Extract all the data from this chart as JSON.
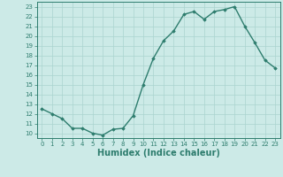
{
  "x": [
    0,
    1,
    2,
    3,
    4,
    5,
    6,
    7,
    8,
    9,
    10,
    11,
    12,
    13,
    14,
    15,
    16,
    17,
    18,
    19,
    20,
    21,
    22,
    23
  ],
  "y": [
    12.5,
    12.0,
    11.5,
    10.5,
    10.5,
    10.0,
    9.8,
    10.4,
    10.5,
    11.8,
    15.0,
    17.7,
    19.5,
    20.5,
    22.2,
    22.5,
    21.7,
    22.5,
    22.7,
    23.0,
    21.0,
    19.3,
    17.5,
    16.7
  ],
  "line_color": "#2e7d6e",
  "marker": "D",
  "marker_size": 1.8,
  "bg_color": "#cceae7",
  "grid_color": "#aad4d0",
  "xlabel": "Humidex (Indice chaleur)",
  "xlabel_color": "#2e7d6e",
  "xlim": [
    -0.5,
    23.5
  ],
  "ylim": [
    9.5,
    23.5
  ],
  "yticks": [
    10,
    11,
    12,
    13,
    14,
    15,
    16,
    17,
    18,
    19,
    20,
    21,
    22,
    23
  ],
  "xticks": [
    0,
    1,
    2,
    3,
    4,
    5,
    6,
    7,
    8,
    9,
    10,
    11,
    12,
    13,
    14,
    15,
    16,
    17,
    18,
    19,
    20,
    21,
    22,
    23
  ],
  "tick_color": "#2e7d6e",
  "tick_fontsize": 5.0,
  "xlabel_fontsize": 7.0,
  "linewidth": 1.0
}
